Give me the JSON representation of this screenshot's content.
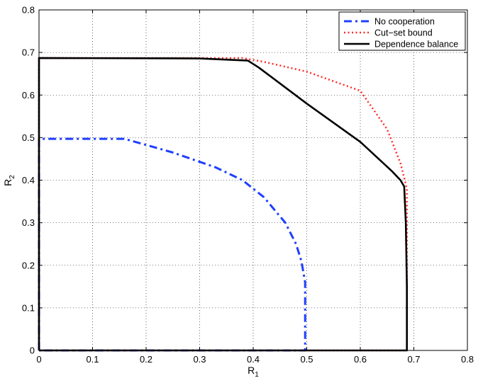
{
  "chart_data": {
    "type": "line",
    "title": "",
    "xlabel": {
      "main": "R",
      "sub": "1"
    },
    "ylabel": {
      "main": "R",
      "sub": "2"
    },
    "xlim": [
      0,
      0.8
    ],
    "ylim": [
      0,
      0.8
    ],
    "x_ticks": [
      "0",
      "0.1",
      "0.2",
      "0.3",
      "0.4",
      "0.5",
      "0.6",
      "0.7",
      "0.8"
    ],
    "y_ticks": [
      "0",
      "0.1",
      "0.2",
      "0.3",
      "0.4",
      "0.5",
      "0.6",
      "0.7",
      "0.8"
    ],
    "grid": true,
    "legend_position": "top-right",
    "series": [
      {
        "name": "No cooperation",
        "color": "#1f3fff",
        "style": "dash-dot",
        "points": [
          [
            0,
            0
          ],
          [
            0,
            0.497
          ],
          [
            0.16,
            0.497
          ],
          [
            0.25,
            0.465
          ],
          [
            0.33,
            0.43
          ],
          [
            0.38,
            0.4
          ],
          [
            0.42,
            0.36
          ],
          [
            0.46,
            0.3
          ],
          [
            0.48,
            0.25
          ],
          [
            0.49,
            0.21
          ],
          [
            0.497,
            0.16
          ],
          [
            0.497,
            0
          ],
          [
            0,
            0
          ]
        ]
      },
      {
        "name": "Cut−set bound",
        "color": "#ff2a2a",
        "style": "dotted",
        "points": [
          [
            0,
            0
          ],
          [
            0,
            0.687
          ],
          [
            0.38,
            0.687
          ],
          [
            0.42,
            0.678
          ],
          [
            0.5,
            0.655
          ],
          [
            0.6,
            0.61
          ],
          [
            0.65,
            0.52
          ],
          [
            0.675,
            0.44
          ],
          [
            0.687,
            0.38
          ],
          [
            0.687,
            0
          ],
          [
            0,
            0
          ]
        ]
      },
      {
        "name": "Dependence balance",
        "color": "#000000",
        "style": "solid",
        "points": [
          [
            0,
            0
          ],
          [
            0,
            0.687
          ],
          [
            0.3,
            0.686
          ],
          [
            0.39,
            0.681
          ],
          [
            0.41,
            0.665
          ],
          [
            0.5,
            0.58
          ],
          [
            0.6,
            0.49
          ],
          [
            0.66,
            0.42
          ],
          [
            0.675,
            0.4
          ],
          [
            0.682,
            0.385
          ],
          [
            0.685,
            0.3
          ],
          [
            0.687,
            0.15
          ],
          [
            0.687,
            0
          ],
          [
            0,
            0
          ]
        ]
      }
    ]
  }
}
